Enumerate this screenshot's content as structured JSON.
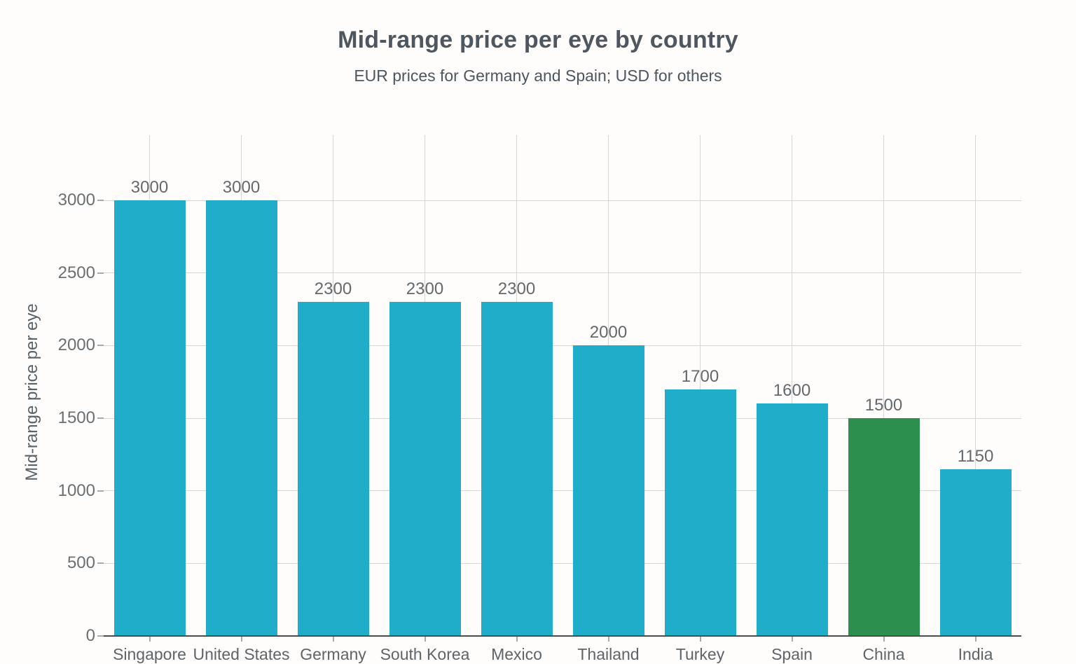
{
  "chart_data": {
    "type": "bar",
    "title": "Mid-range price per eye by country",
    "subtitle": "EUR prices for Germany and Spain; USD for others",
    "ylabel": "Mid-range price per eye",
    "xlabel": "",
    "categories": [
      "Singapore",
      "United States",
      "Germany",
      "South Korea",
      "Mexico",
      "Thailand",
      "Turkey",
      "Spain",
      "China",
      "India"
    ],
    "values": [
      3000,
      3000,
      2300,
      2300,
      2300,
      2000,
      1700,
      1600,
      1500,
      1150
    ],
    "bar_labels": [
      "3000",
      "3000",
      "2300",
      "2300",
      "2300",
      "2000",
      "1700",
      "1600",
      "1500",
      "1150"
    ],
    "ylim": [
      0,
      3000
    ],
    "yticks": [
      0,
      500,
      1000,
      1500,
      2000,
      2500,
      3000
    ],
    "grid": "both",
    "legend": "none",
    "default_bar_color": "#1fadc9",
    "highlight_bar_color": "#2d8f4e",
    "highlight_index": 8,
    "highlight_category": "China"
  },
  "colors": {
    "background": "#fefdfb",
    "gridline": "#d7d6d4",
    "axis_line": "#4c4c4c",
    "tick_mark": "#aaaaaa",
    "title_text": "#4e565f",
    "subtitle_text": "#4d5660",
    "tick_text": "#6a6f73",
    "value_label_text": "#64696d",
    "category_text": "#5e6469",
    "y_axis_title_text": "#5a6167"
  }
}
